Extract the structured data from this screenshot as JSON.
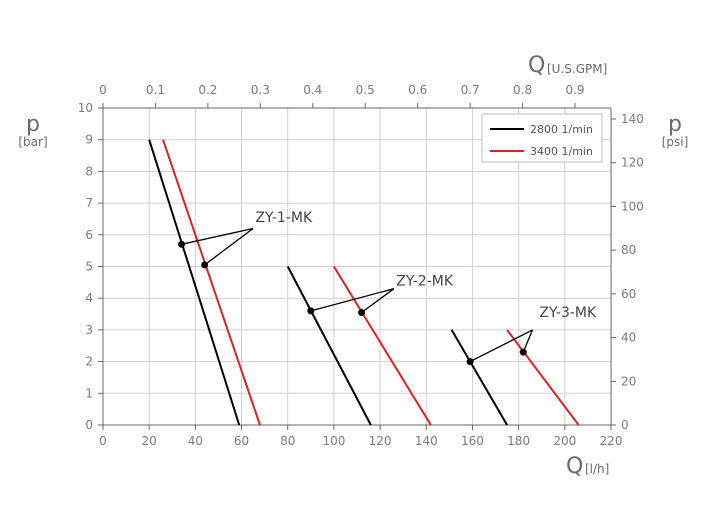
{
  "chart_data": {
    "type": "line",
    "x_axis_bottom": {
      "symbol": "Q",
      "unit": "[l/h]",
      "range": [
        0,
        220
      ],
      "ticks": [
        "0",
        "20",
        "40",
        "60",
        "80",
        "100",
        "120",
        "140",
        "160",
        "180",
        "200",
        "220"
      ]
    },
    "x_axis_top": {
      "symbol": "Q",
      "unit": "[U.S.GPM]",
      "range": [
        0,
        0.9686
      ],
      "ticks": [
        "0",
        "0.1",
        "0.2",
        "0.3",
        "0.4",
        "0.5",
        "0.6",
        "0.7",
        "0.8",
        "0.9"
      ]
    },
    "y_axis_left": {
      "symbol": "p",
      "unit": "[bar]",
      "range": [
        0,
        10
      ],
      "ticks": [
        "0",
        "1",
        "2",
        "3",
        "4",
        "5",
        "6",
        "7",
        "8",
        "9",
        "10"
      ]
    },
    "y_axis_right": {
      "symbol": "p",
      "unit": "[psi]",
      "range": [
        0,
        145.04
      ],
      "ticks": [
        "0",
        "20",
        "40",
        "60",
        "80",
        "100",
        "120",
        "140"
      ]
    },
    "grid": true,
    "legend": {
      "placement": "top-right",
      "entries": [
        {
          "label": "2800 1/min",
          "color": "#000000"
        },
        {
          "label": "3400 1/min",
          "color": "#e02020"
        }
      ]
    },
    "series": [
      {
        "speed": "2800 1/min",
        "pump": "ZY-1-MK",
        "color": "#000000",
        "points": [
          [
            20,
            9
          ],
          [
            59,
            0
          ]
        ]
      },
      {
        "speed": "3400 1/min",
        "pump": "ZY-1-MK",
        "color": "#e02020",
        "points": [
          [
            26,
            9
          ],
          [
            68,
            0
          ]
        ]
      },
      {
        "speed": "2800 1/min",
        "pump": "ZY-2-MK",
        "color": "#000000",
        "points": [
          [
            80,
            5
          ],
          [
            116,
            0
          ]
        ]
      },
      {
        "speed": "3400 1/min",
        "pump": "ZY-2-MK",
        "color": "#e02020",
        "points": [
          [
            100,
            5
          ],
          [
            142,
            0
          ]
        ]
      },
      {
        "speed": "2800 1/min",
        "pump": "ZY-3-MK",
        "color": "#000000",
        "points": [
          [
            151,
            3
          ],
          [
            175,
            0
          ]
        ]
      },
      {
        "speed": "3400 1/min",
        "pump": "ZY-3-MK",
        "color": "#e02020",
        "points": [
          [
            175,
            3
          ],
          [
            206,
            0
          ]
        ]
      }
    ],
    "annotations": [
      {
        "text": "ZY-1-MK",
        "points": [
          [
            34,
            5.7
          ],
          [
            44,
            5.05
          ]
        ],
        "leader_vertex": [
          65,
          6.2
        ],
        "text_at": [
          66,
          6.4
        ]
      },
      {
        "text": "ZY-2-MK",
        "points": [
          [
            90,
            3.6
          ],
          [
            112,
            3.55
          ]
        ],
        "leader_vertex": [
          126,
          4.3
        ],
        "text_at": [
          127,
          4.4
        ]
      },
      {
        "text": "ZY-3-MK",
        "points": [
          [
            159,
            2.0
          ],
          [
            182,
            2.3
          ]
        ],
        "leader_vertex": [
          186,
          3.0
        ],
        "text_at": [
          189,
          3.4
        ]
      }
    ]
  }
}
